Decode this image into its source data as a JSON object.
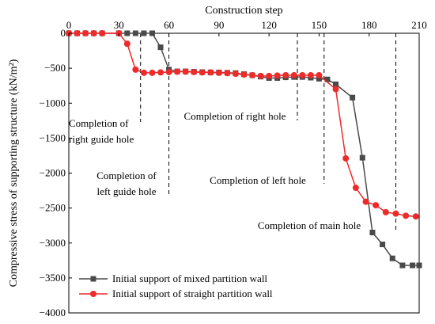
{
  "chart_data": {
    "type": "line",
    "title": "",
    "xlabel": "Construction step",
    "ylabel": "Compressive stress of supporting structure (kN/m²)",
    "xlim": [
      0,
      210
    ],
    "ylim": [
      -4000,
      0
    ],
    "x_ticks": [
      "0",
      "30",
      "60",
      "90",
      "120",
      "150",
      "180",
      "210"
    ],
    "y_ticks": [
      "0",
      "−500",
      "−1000",
      "−1500",
      "−2000",
      "−2500",
      "−3000",
      "−3500",
      "−4000"
    ],
    "x_axis_position": "top",
    "grid": false,
    "legend_position": "bottom-left",
    "series": [
      {
        "name": "Initial support of mixed partition wall",
        "color": "#4a4a4a",
        "marker": "square",
        "x": [
          0,
          5,
          10,
          15,
          20,
          30,
          35,
          40,
          45,
          50,
          55,
          60,
          65,
          70,
          75,
          80,
          85,
          90,
          95,
          100,
          105,
          110,
          115,
          120,
          125,
          130,
          135,
          140,
          145,
          150,
          155,
          160,
          170,
          176,
          182,
          188,
          194,
          200,
          206,
          212
        ],
        "y": [
          0,
          0,
          0,
          0,
          0,
          0,
          0,
          0,
          0,
          0,
          -200,
          -520,
          -545,
          -545,
          -550,
          -555,
          -560,
          -560,
          -565,
          -570,
          -585,
          -600,
          -620,
          -640,
          -640,
          -630,
          -625,
          -625,
          -635,
          -650,
          -660,
          -730,
          -920,
          -1780,
          -2850,
          -3020,
          -3220,
          -3320,
          -3320,
          -3320
        ]
      },
      {
        "name": "Initial support of straight partition wall",
        "color": "#ee2a2a",
        "marker": "circle",
        "x": [
          0,
          5,
          10,
          15,
          20,
          30,
          35,
          40,
          45,
          50,
          55,
          60,
          65,
          70,
          75,
          80,
          85,
          90,
          95,
          100,
          105,
          110,
          115,
          120,
          125,
          130,
          135,
          140,
          145,
          150,
          160,
          166,
          172,
          178,
          184,
          190,
          196,
          202,
          208
        ],
        "y": [
          0,
          0,
          0,
          0,
          0,
          0,
          -150,
          -520,
          -565,
          -565,
          -560,
          -555,
          -550,
          -550,
          -555,
          -560,
          -560,
          -565,
          -570,
          -580,
          -590,
          -600,
          -610,
          -610,
          -605,
          -600,
          -600,
          -600,
          -600,
          -600,
          -800,
          -1790,
          -2210,
          -2410,
          -2460,
          -2560,
          -2580,
          -2610,
          -2620
        ]
      }
    ],
    "dashed_lines_x": [
      43,
      60,
      137,
      153,
      196
    ],
    "annotations": [
      {
        "lines": [
          "Completion of",
          "right guide hole"
        ]
      },
      {
        "lines": [
          "Completion of",
          "left guide hole"
        ]
      },
      {
        "lines": [
          "Completion of right hole"
        ]
      },
      {
        "lines": [
          "Completion of left hole"
        ]
      },
      {
        "lines": [
          "Completion of main hole"
        ]
      }
    ]
  }
}
